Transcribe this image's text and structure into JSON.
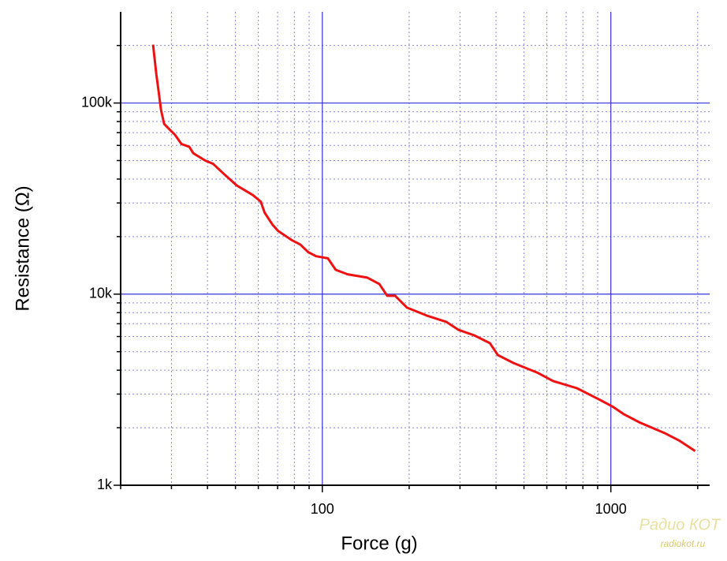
{
  "chart_data": {
    "type": "line",
    "x_label": "Force (g)",
    "y_label": "Resistance (Ω)",
    "log_x": true,
    "log_y": true,
    "grid": true,
    "color": "#ee1111",
    "xlim": [
      20,
      2200
    ],
    "ylim": [
      1000,
      300000
    ],
    "xticks": [
      100,
      1000
    ],
    "x_minor_ticks": [
      20,
      30,
      40,
      50,
      60,
      70,
      80,
      90,
      200,
      300,
      400,
      500,
      600,
      700,
      800,
      900,
      2000
    ],
    "yticks": [
      {
        "value": 1000,
        "label": "1k"
      },
      {
        "value": 10000,
        "label": "10k"
      },
      {
        "value": 100000,
        "label": "100k"
      }
    ],
    "y_minor_ticks": [
      2000,
      3000,
      4000,
      5000,
      6000,
      7000,
      8000,
      9000,
      20000,
      30000,
      40000,
      50000,
      60000,
      70000,
      80000,
      90000,
      200000
    ],
    "x": [
      25.9,
      26.6,
      27.1,
      27.6,
      28.3,
      29.6,
      30.9,
      32.5,
      34.6,
      35.7,
      39.3,
      41.9,
      46,
      50.6,
      57.4,
      61.2,
      63.1,
      67.2,
      70.3,
      78.7,
      83.8,
      89.3,
      95.1,
      104.5,
      111.3,
      122.3,
      143.3,
      157.6,
      167.9,
      178.9,
      196.6,
      230,
      269,
      296,
      336,
      381,
      406,
      460,
      555,
      631,
      763,
      920,
      1014,
      1111,
      1260,
      1530,
      1730,
      1960
    ],
    "values": [
      202000,
      141000,
      114000,
      92000,
      77700,
      72600,
      68000,
      61000,
      59000,
      54600,
      50000,
      48000,
      42000,
      37000,
      33000,
      30500,
      26700,
      23100,
      21400,
      19100,
      18200,
      16600,
      15800,
      15400,
      13400,
      12700,
      12200,
      11300,
      9800,
      9800,
      8500,
      7730,
      7160,
      6510,
      6090,
      5540,
      4800,
      4360,
      3890,
      3510,
      3220,
      2790,
      2580,
      2350,
      2130,
      1880,
      1710,
      1510
    ],
    "watermark": [
      "Радио КОТ",
      "radiokot.ru"
    ]
  }
}
